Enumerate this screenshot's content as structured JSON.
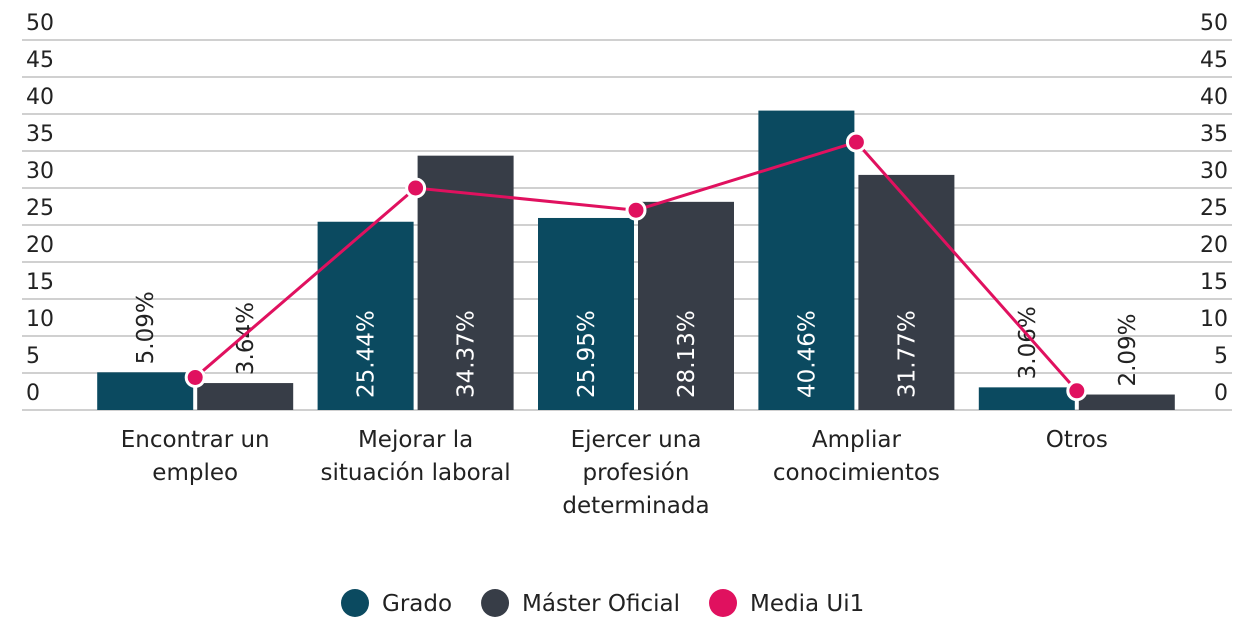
{
  "chart_data": {
    "type": "bar+line",
    "categories": [
      "Encontrar un empleo",
      "Mejorar la situación laboral",
      "Ejercer una profesión determinada",
      "Ampliar conocimientos",
      "Otros"
    ],
    "series": [
      {
        "name": "Grado",
        "type": "bar",
        "color": "#0b4a60",
        "values": [
          5.09,
          25.44,
          25.95,
          40.46,
          3.06
        ],
        "value_labels": [
          "5.09%",
          "25.44%",
          "25.95%",
          "40.46%",
          "3.06%"
        ]
      },
      {
        "name": "Máster Oficial",
        "type": "bar",
        "color": "#373d47",
        "values": [
          3.64,
          34.37,
          28.13,
          31.77,
          2.09
        ],
        "value_labels": [
          "3.64%",
          "34.37%",
          "28.13%",
          "31.77%",
          "2.09%"
        ]
      },
      {
        "name": "Media Ui1",
        "type": "line",
        "color": "#e0115f",
        "values": [
          4.4,
          30,
          27,
          36.2,
          2.6
        ]
      }
    ],
    "ylim": [
      0,
      50
    ],
    "yticks": [
      0,
      5,
      10,
      15,
      20,
      25,
      30,
      35,
      40,
      45,
      50
    ],
    "y2lim": [
      0,
      50
    ],
    "y2ticks": [
      0,
      5,
      10,
      15,
      20,
      25,
      30,
      35,
      40,
      45,
      50
    ],
    "grid": true,
    "legend": "bottom"
  }
}
